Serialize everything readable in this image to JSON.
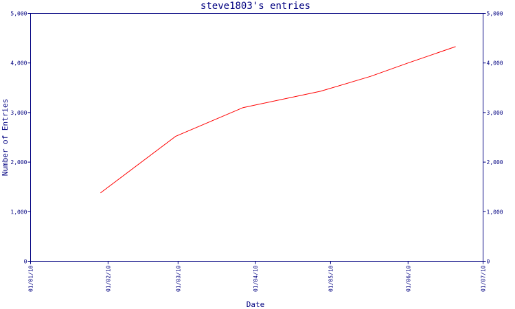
{
  "chart_data": {
    "type": "line",
    "title": "steve1803's entries",
    "xlabel": "Date",
    "ylabel": "Number of Entries",
    "x_ticks": [
      "01/01/10",
      "01/02/10",
      "01/03/10",
      "01/04/10",
      "01/05/10",
      "01/06/10",
      "01/07/10"
    ],
    "ylim": [
      0,
      5000
    ],
    "y_ticks": [
      0,
      1000,
      2000,
      3000,
      4000,
      5000
    ],
    "y_tick_labels": [
      "0",
      "1,000",
      "2,000",
      "3,000",
      "4,000",
      "5,000"
    ],
    "grid": false,
    "colors": {
      "line": "#ff0000",
      "axis": "#000080",
      "text": "#000080",
      "background": "#ffffff"
    },
    "series": [
      {
        "x": [
          "2010-01-29",
          "2010-02-28",
          "2010-03-27",
          "2010-04-27",
          "2010-05-17",
          "2010-06-01",
          "2010-06-20"
        ],
        "y": [
          1380,
          2520,
          3100,
          3430,
          3730,
          4000,
          4330
        ]
      }
    ]
  }
}
